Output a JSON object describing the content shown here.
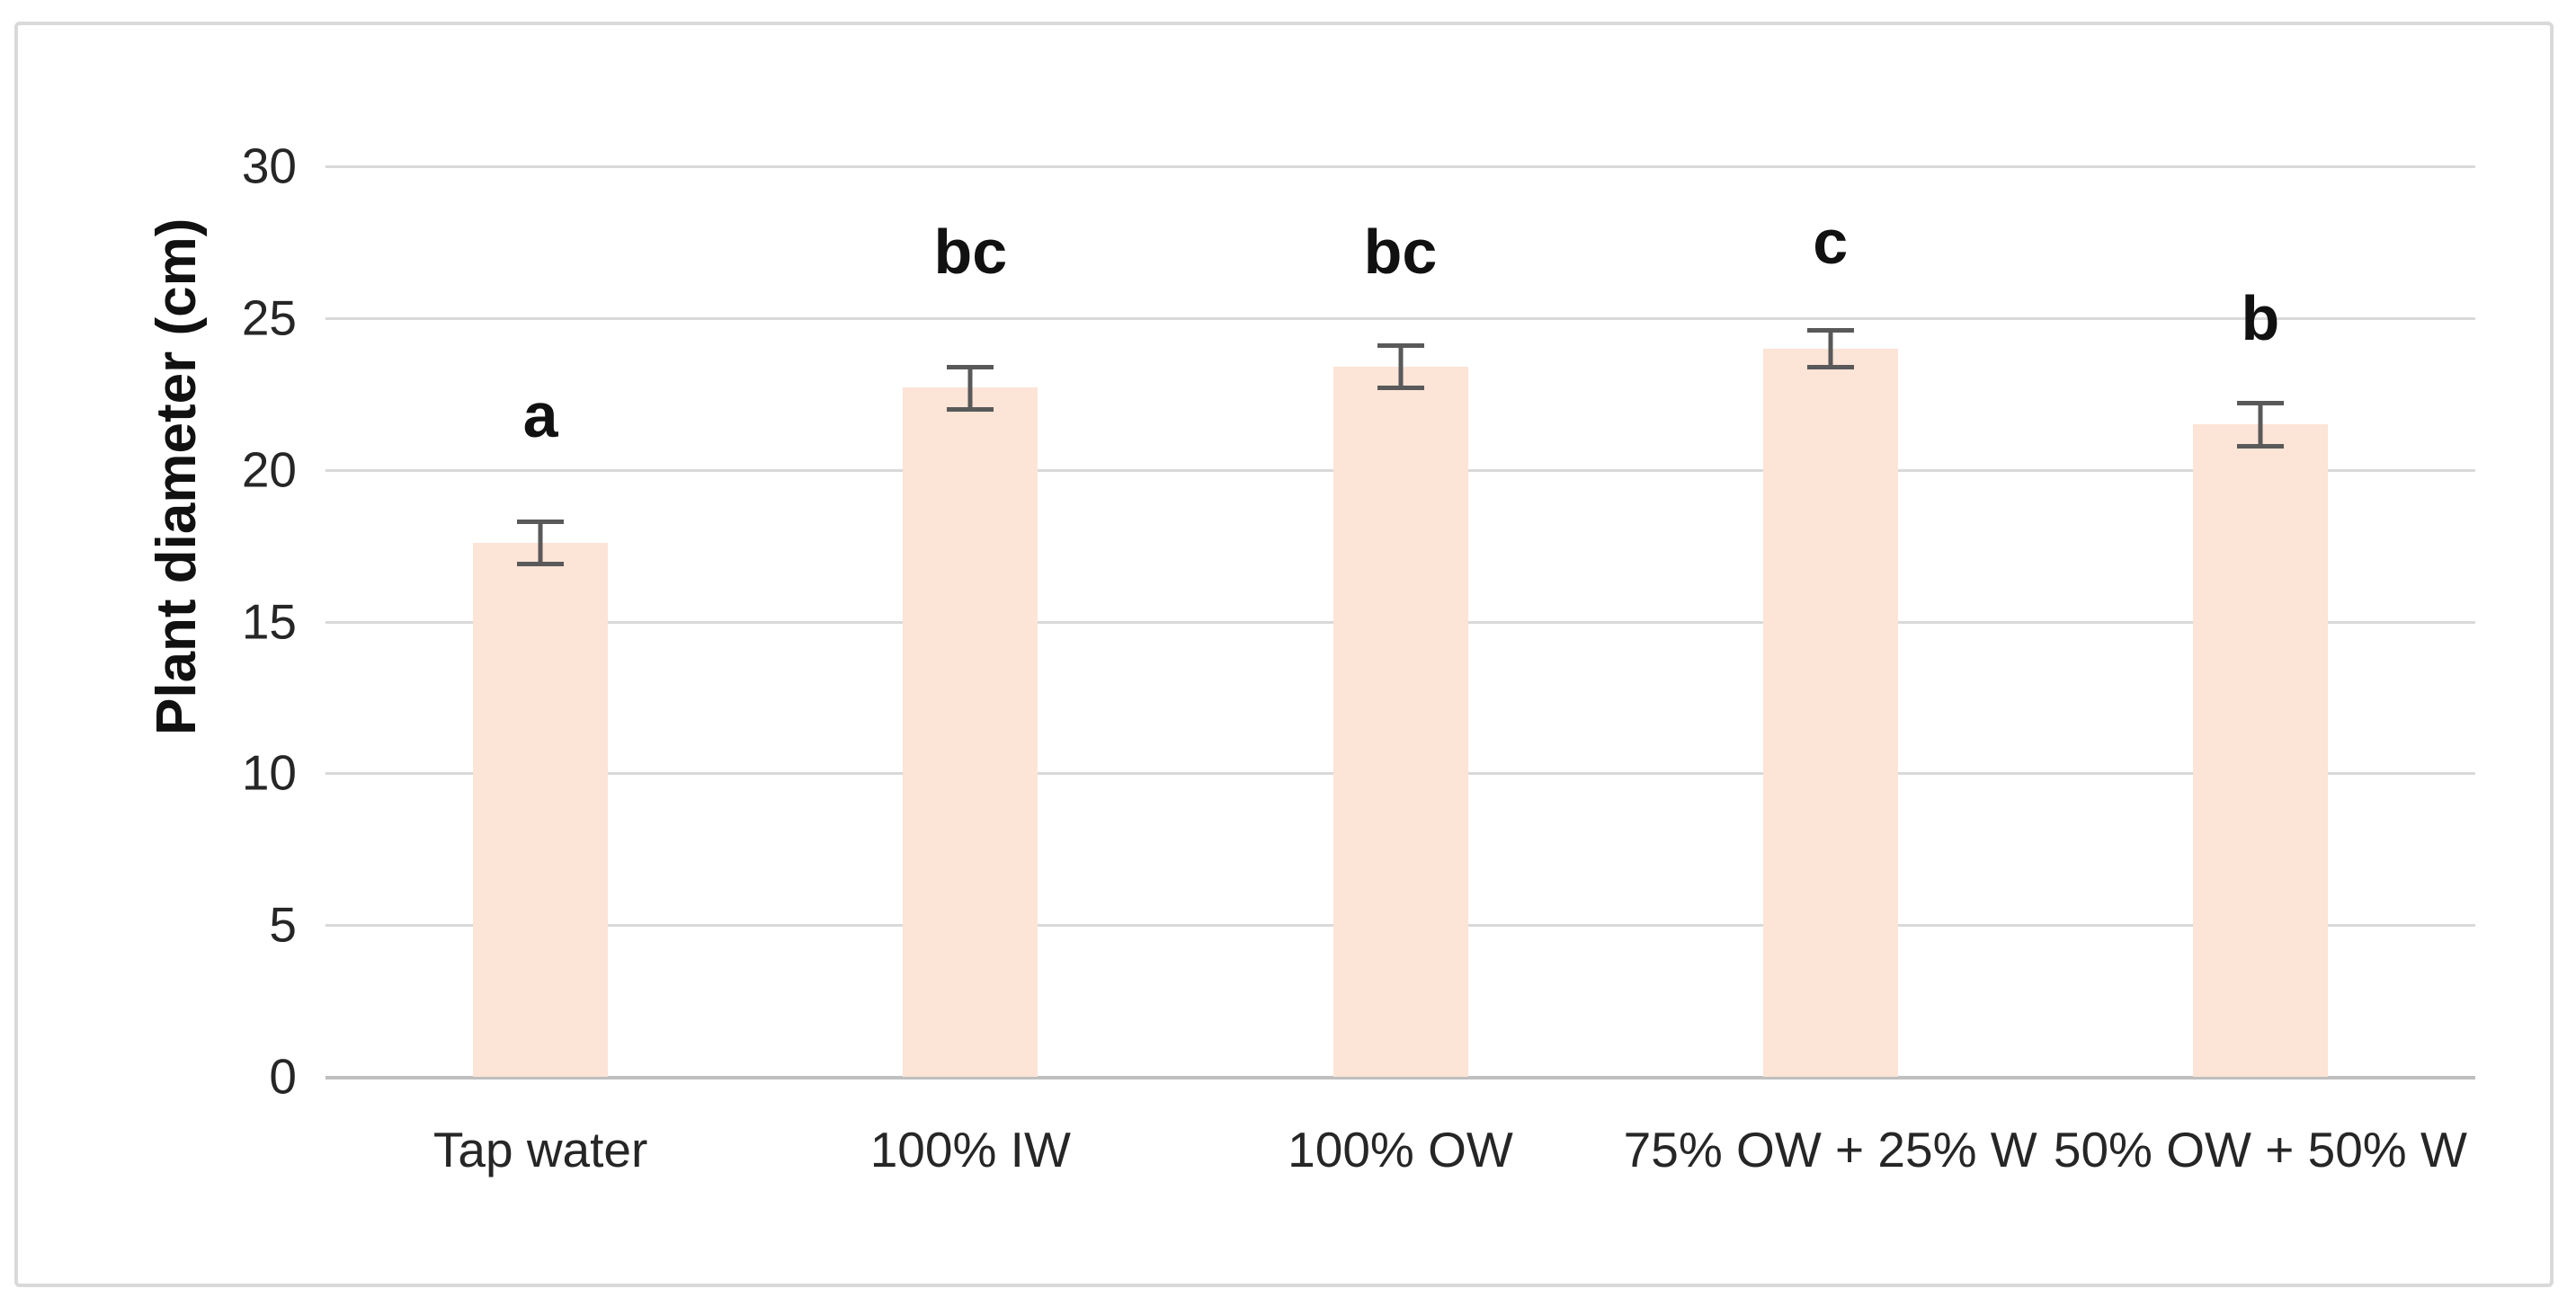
{
  "chart_data": {
    "type": "bar",
    "title": "",
    "xlabel": "",
    "ylabel": "Plant diameter (cm)",
    "ylim": [
      0,
      30
    ],
    "y_ticks": [
      0,
      5,
      10,
      15,
      20,
      25,
      30
    ],
    "grid": "horizontal gridlines on",
    "legend_position": "none",
    "categories": [
      "Tap water",
      "100% IW",
      "100% OW",
      "75% OW + 25% W",
      "50% OW + 50% W"
    ],
    "values": [
      17.6,
      22.7,
      23.4,
      24.0,
      21.5
    ],
    "error_bars": [
      0.7,
      0.7,
      0.7,
      0.6,
      0.7
    ],
    "significance_letters": [
      "a",
      "bc",
      "bc",
      "c",
      "b"
    ],
    "letter_y_values": [
      21.8,
      27.2,
      27.2,
      27.5,
      25.0
    ],
    "bar_color": "#FCE4D6",
    "error_bar_color": "#595959",
    "gridline_color": "#D9D9D9",
    "axis_line_color": "#BFBFBF",
    "frame_border_color": "#D9D9D9",
    "text_color": "#262626"
  }
}
